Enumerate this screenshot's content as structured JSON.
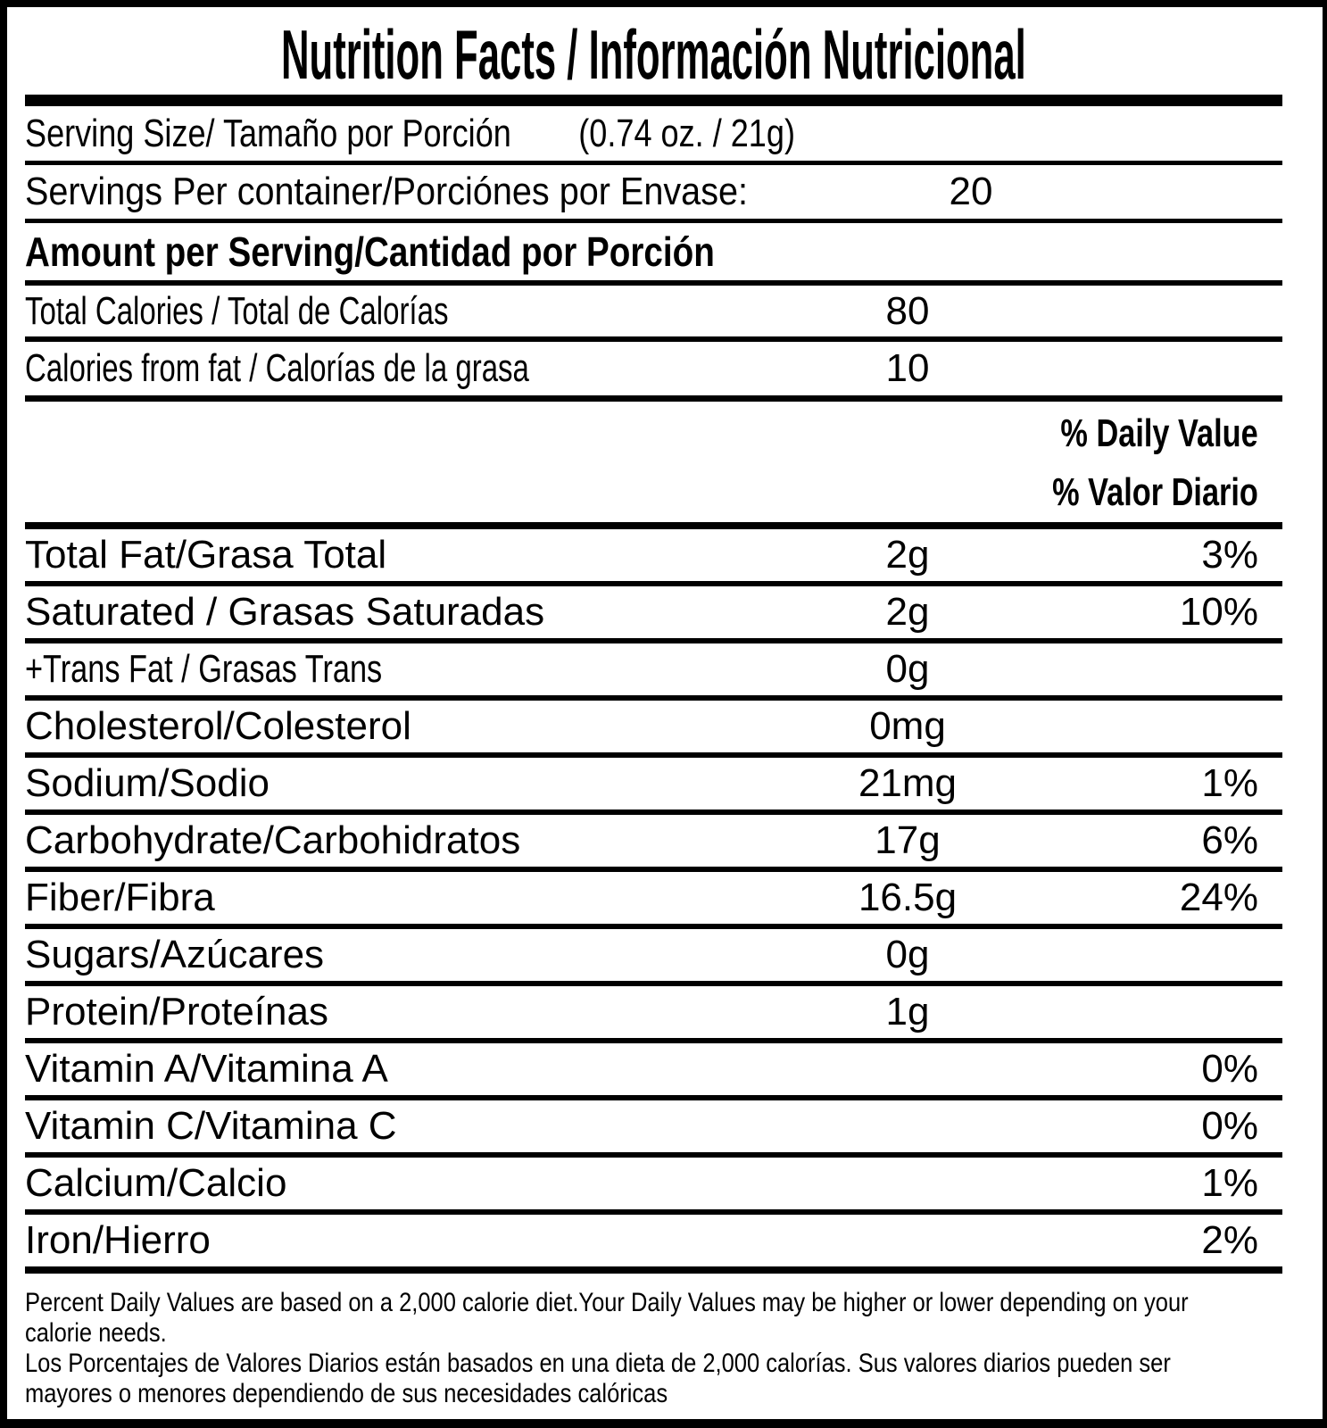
{
  "title": "Nutrition Facts / Información Nutricional",
  "serving_size": {
    "label": "Serving Size/ Tamaño por Porción",
    "value": "(0.74 oz. / 21g)"
  },
  "servings_per_container": {
    "label": "Servings Per container/Porciónes por Envase:",
    "value": "20"
  },
  "section_header": "Amount per Serving/Cantidad por Porción",
  "calorie_rows": [
    {
      "label": "Total Calories / Total de Calorías",
      "value": "80"
    },
    {
      "label": "Calories from fat / Calorías de la grasa",
      "value": "10"
    }
  ],
  "daily_value_header": {
    "en": "% Daily Value",
    "es": "% Valor Diario"
  },
  "nutrient_rows": [
    {
      "label": "Total Fat/Grasa Total",
      "amount": "2g",
      "dv": "3%"
    },
    {
      "label": "Saturated / Grasas Saturadas",
      "amount": "2g",
      "dv": "10%"
    },
    {
      "label": "+Trans Fat / Grasas Trans",
      "amount": "0g",
      "dv": ""
    },
    {
      "label": "Cholesterol/Colesterol",
      "amount": "0mg",
      "dv": ""
    },
    {
      "label": "Sodium/Sodio",
      "amount": "21mg",
      "dv": "1%"
    },
    {
      "label": "Carbohydrate/Carbohidratos",
      "amount": "17g",
      "dv": "6%"
    },
    {
      "label": "Fiber/Fibra",
      "amount": "16.5g",
      "dv": "24%"
    },
    {
      "label": "Sugars/Azúcares",
      "amount": "0g",
      "dv": ""
    },
    {
      "label": "Protein/Proteínas",
      "amount": "1g",
      "dv": ""
    },
    {
      "label": "Vitamin A/Vitamina A",
      "amount": "",
      "dv": "0%"
    },
    {
      "label": "Vitamin C/Vitamina C",
      "amount": "",
      "dv": "0%"
    },
    {
      "label": "Calcium/Calcio",
      "amount": "",
      "dv": "1%"
    },
    {
      "label": "Iron/Hierro",
      "amount": "",
      "dv": "2%"
    }
  ],
  "footnote": {
    "lines": [
      "Percent Daily Values are based on a 2,000 calorie diet.Your Daily Values may be higher or lower depending on your",
      "calorie needs.",
      "Los Porcentajes de Valores Diarios están basados en una dieta de 2,000 calorías. Sus valores diarios pueden ser",
      "mayores o menores dependiendo de sus necesidades calóricas"
    ]
  }
}
